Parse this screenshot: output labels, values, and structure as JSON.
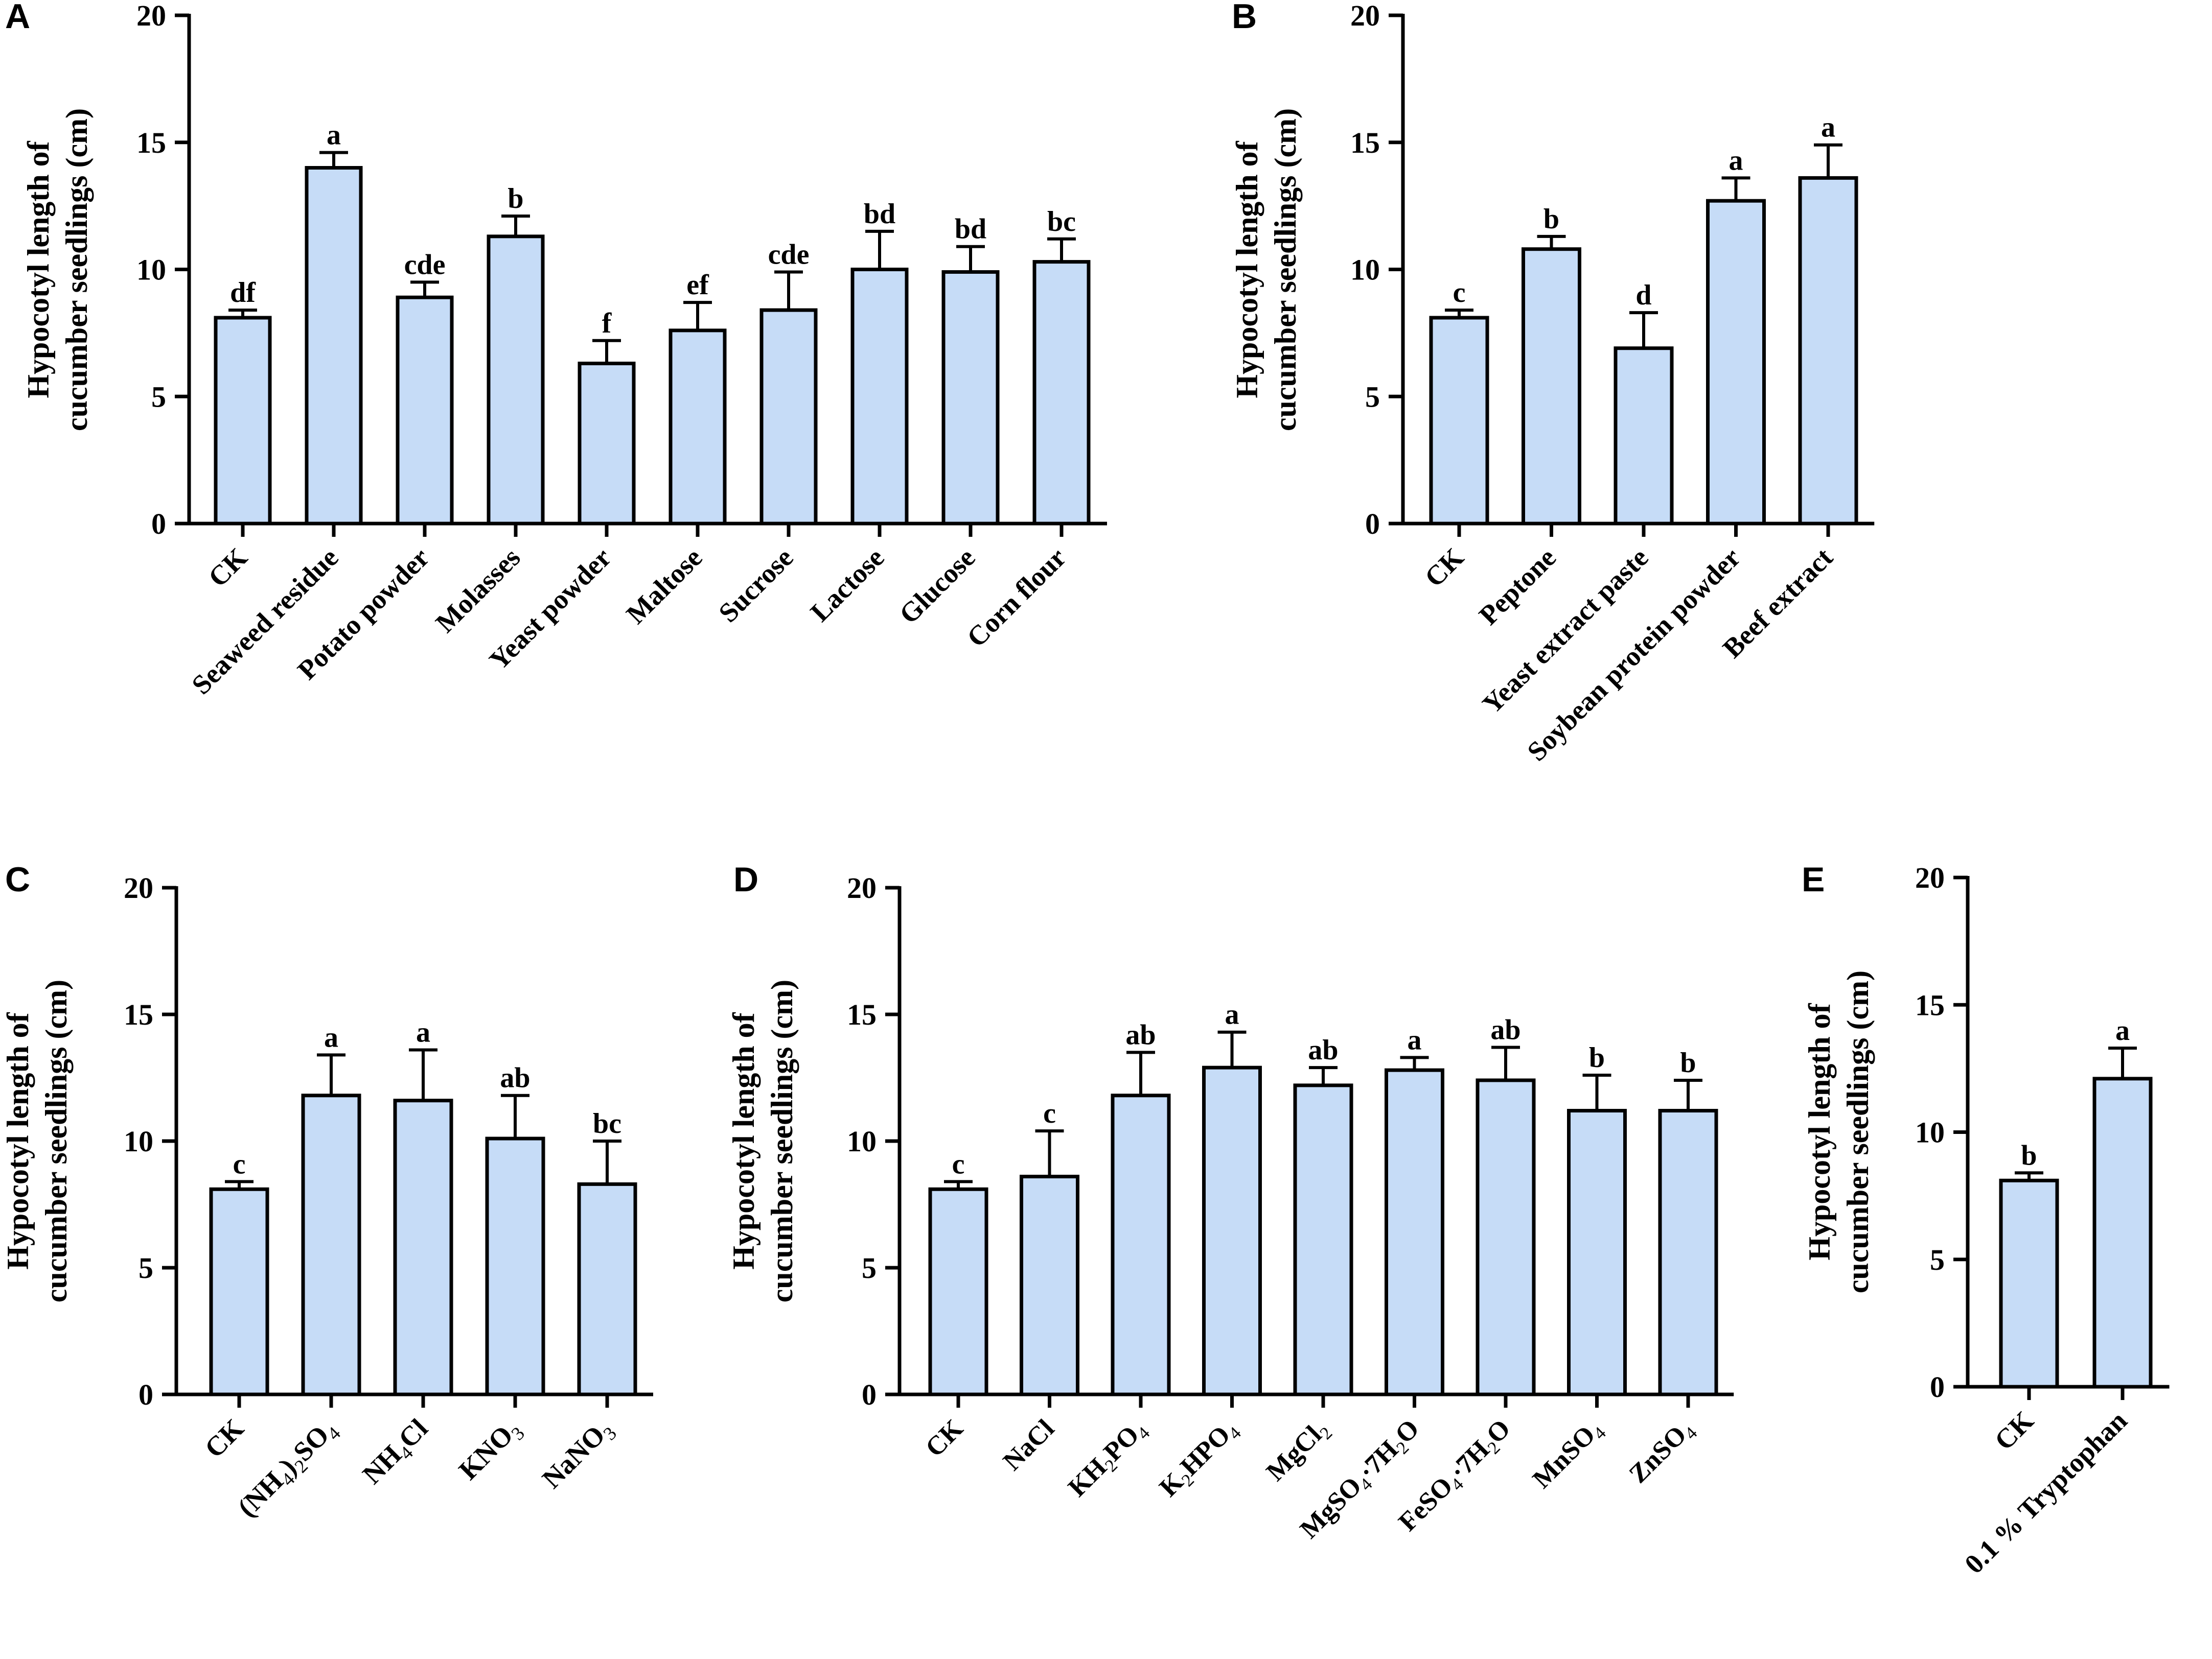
{
  "chart_data": [
    {
      "type": "bar",
      "panel": "A",
      "ylabel": [
        "Hypocotyl length of",
        "cucumber seedlings (cm)"
      ],
      "ylim": [
        0,
        20
      ],
      "yticks": [
        0,
        5,
        10,
        15,
        20
      ],
      "categories": [
        "CK",
        "Seaweed residue",
        "Potato powder",
        "Molasses",
        "Yeast powder",
        "Maltose",
        "Sucrose",
        "Lactose",
        "Glucose",
        "Corn flour"
      ],
      "values": [
        8.1,
        14.0,
        8.9,
        11.3,
        6.3,
        7.6,
        8.4,
        10.0,
        9.9,
        10.3
      ],
      "errors": [
        0.3,
        0.6,
        0.6,
        0.8,
        0.9,
        1.1,
        1.5,
        1.5,
        1.0,
        0.9
      ],
      "significance": [
        "df",
        "a",
        "cde",
        "b",
        "f",
        "ef",
        "cde",
        "bd",
        "bd",
        "bc"
      ]
    },
    {
      "type": "bar",
      "panel": "B",
      "ylabel": [
        "Hypocotyl length of",
        "cucumber seedlings (cm)"
      ],
      "ylim": [
        0,
        20
      ],
      "yticks": [
        0,
        5,
        10,
        15,
        20
      ],
      "categories": [
        "CK",
        "Peptone",
        "Yeast extract paste",
        "Soybean protein powder",
        "Beef extract"
      ],
      "values": [
        8.1,
        10.8,
        6.9,
        12.7,
        13.6
      ],
      "errors": [
        0.3,
        0.5,
        1.4,
        0.9,
        1.3
      ],
      "significance": [
        "c",
        "b",
        "d",
        "a",
        "a"
      ]
    },
    {
      "type": "bar",
      "panel": "C",
      "ylabel": [
        "Hypocotyl length of",
        "cucumber seedlings (cm)"
      ],
      "ylim": [
        0,
        20
      ],
      "yticks": [
        0,
        5,
        10,
        15,
        20
      ],
      "categories": [
        "CK",
        "(NH<sub>4</sub>)<sub>2</sub>SO<sub>4</sub>",
        "NH<sub>4</sub>Cl",
        "KNO<sub>3</sub>",
        "NaNO<sub>3</sub>"
      ],
      "values": [
        8.1,
        11.8,
        11.6,
        10.1,
        8.3
      ],
      "errors": [
        0.3,
        1.6,
        2.0,
        1.7,
        1.7
      ],
      "significance": [
        "c",
        "a",
        "a",
        "ab",
        "bc"
      ]
    },
    {
      "type": "bar",
      "panel": "D",
      "ylabel": [
        "Hypocotyl length of",
        "cucumber seedlings (cm)"
      ],
      "ylim": [
        0,
        20
      ],
      "yticks": [
        0,
        5,
        10,
        15,
        20
      ],
      "categories": [
        "CK",
        "NaCl",
        "KH<sub>2</sub>PO<sub>4</sub>",
        "K<sub>2</sub>HPO<sub>4</sub>",
        "MgCl<sub>2</sub>",
        "MgSO<sub>4</sub>·7H<sub>2</sub>O",
        "FeSO<sub>4</sub>·7H<sub>2</sub>O",
        "MnSO<sub>4</sub>",
        "ZnSO<sub>4</sub>"
      ],
      "values": [
        8.1,
        8.6,
        11.8,
        12.9,
        12.2,
        12.8,
        12.4,
        11.2,
        11.2
      ],
      "errors": [
        0.3,
        1.8,
        1.7,
        1.4,
        0.7,
        0.5,
        1.3,
        1.4,
        1.2
      ],
      "significance": [
        "c",
        "c",
        "ab",
        "a",
        "ab",
        "a",
        "ab",
        "b",
        "b"
      ]
    },
    {
      "type": "bar",
      "panel": "E",
      "ylabel": [
        "Hypocotyl length of",
        "cucumber seedlings (cm)"
      ],
      "ylim": [
        0,
        20
      ],
      "yticks": [
        0,
        5,
        10,
        15,
        20
      ],
      "categories": [
        "CK",
        "0.1 % Tryptophan"
      ],
      "values": [
        8.1,
        12.1
      ],
      "errors": [
        0.3,
        1.2
      ],
      "significance": [
        "b",
        "a"
      ]
    }
  ]
}
